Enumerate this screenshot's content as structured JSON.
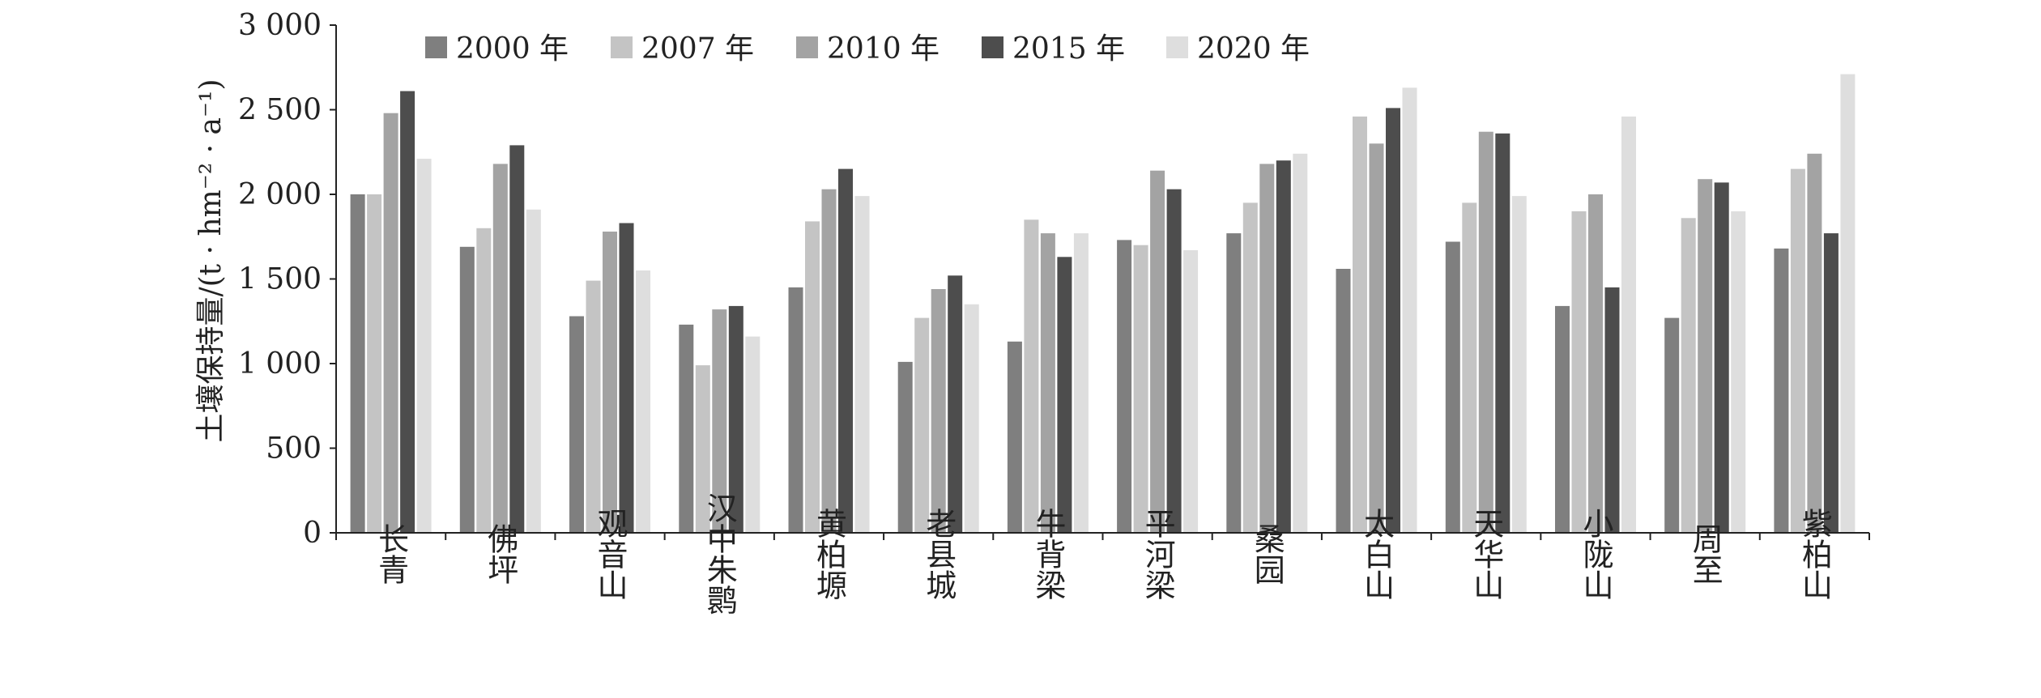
{
  "chart_data": {
    "type": "bar",
    "title": "",
    "xlabel": "",
    "ylabel": "土壤保持量/(t · hm⁻² · a⁻¹)",
    "ylim": [
      0,
      3000
    ],
    "yticks": [
      0,
      500,
      1000,
      1500,
      2000,
      2500,
      3000
    ],
    "ytick_labels": [
      "0",
      "500",
      "1 000",
      "1 500",
      "2 000",
      "2 500",
      "3 000"
    ],
    "grid": false,
    "legend_position": "top",
    "categories": [
      "长青",
      "佛坪",
      "观音山",
      "汉中朱鹮",
      "黄柏塬",
      "老县城",
      "牛背梁",
      "平河梁",
      "桑园",
      "太白山",
      "天华山",
      "小陇山",
      "周至",
      "紫柏山"
    ],
    "series": [
      {
        "name": "2000 年",
        "color": "#7f7f7f",
        "values": [
          2000,
          1690,
          1280,
          1230,
          1450,
          1010,
          1130,
          1730,
          1770,
          1560,
          1720,
          1340,
          1270,
          1680
        ]
      },
      {
        "name": "2007 年",
        "color": "#c4c4c4",
        "values": [
          2000,
          1800,
          1490,
          990,
          1840,
          1270,
          1850,
          1700,
          1950,
          2460,
          1950,
          1900,
          1860,
          2150
        ]
      },
      {
        "name": "2010 年",
        "color": "#a3a3a3",
        "values": [
          2480,
          2180,
          1780,
          1320,
          2030,
          1440,
          1770,
          2140,
          2180,
          2300,
          2370,
          2000,
          2090,
          2240
        ]
      },
      {
        "name": "2015 年",
        "color": "#4d4d4d",
        "values": [
          2610,
          2290,
          1830,
          1340,
          2150,
          1520,
          1630,
          2030,
          2200,
          2510,
          2360,
          1450,
          2070,
          1770
        ]
      },
      {
        "name": "2020 年",
        "color": "#dedede",
        "values": [
          2210,
          1910,
          1550,
          1160,
          1990,
          1350,
          1770,
          1670,
          2240,
          2630,
          1990,
          2460,
          1900,
          2710
        ]
      }
    ]
  }
}
